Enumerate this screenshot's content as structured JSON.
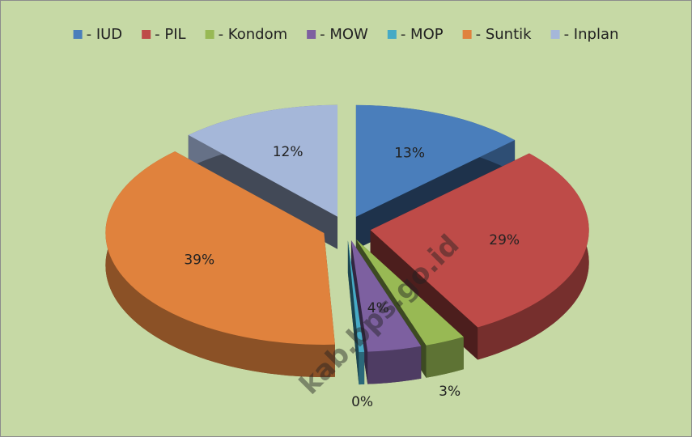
{
  "chart_data": {
    "type": "pie3d",
    "categories": [
      "- IUD",
      "- PIL",
      "- Kondom",
      "- MOW",
      "- MOP",
      "- Suntik",
      "- Inplan"
    ],
    "values": [
      13,
      29,
      3,
      4,
      0.4,
      39,
      12
    ],
    "value_labels": [
      "13%",
      "29%",
      "3%",
      "4%",
      "0%",
      "39%",
      "12%"
    ],
    "colors": [
      "#4a7ebb",
      "#be4b48",
      "#98b954",
      "#7d60a0",
      "#46aac5",
      "#e0823d",
      "#a5b7d9"
    ],
    "legend": "top"
  },
  "watermark": "kab.bps.go.id"
}
